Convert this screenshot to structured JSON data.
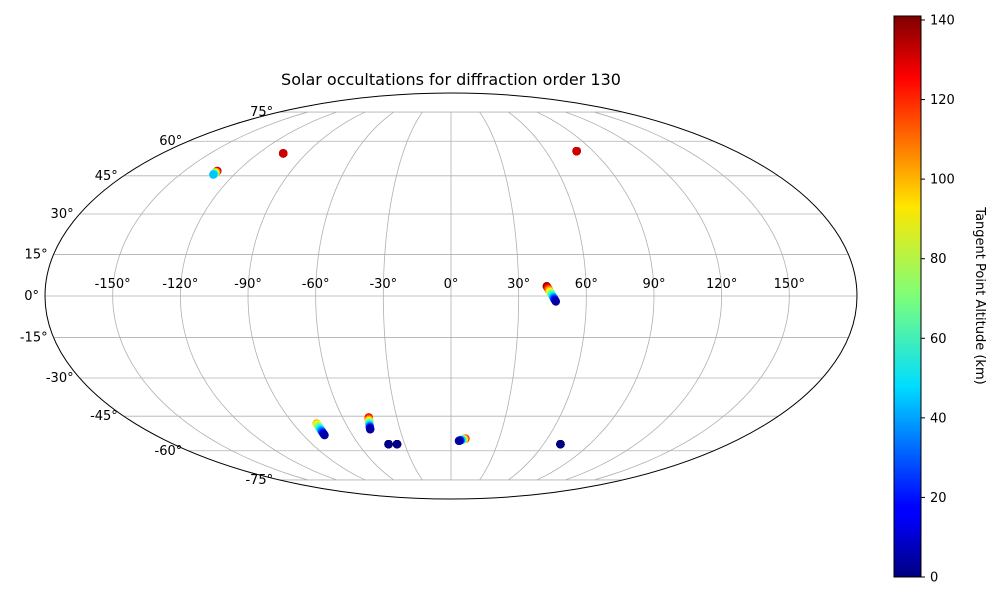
{
  "chart_data": {
    "type": "scatter",
    "projection": "mollweide",
    "title": "Solar occultations for diffraction order 130",
    "lon_ticks": [
      -150,
      -120,
      -90,
      -60,
      -30,
      0,
      30,
      60,
      90,
      120,
      150
    ],
    "lon_tick_labels": [
      "-150°",
      "-120°",
      "-90°",
      "-60°",
      "-30°",
      "0°",
      "30°",
      "60°",
      "90°",
      "120°",
      "150°"
    ],
    "lat_ticks": [
      75,
      60,
      45,
      30,
      15,
      0,
      -15,
      -30,
      -45,
      -60,
      -75
    ],
    "lat_tick_labels": [
      "75°",
      "60°",
      "45°",
      "30°",
      "15°",
      "0°",
      "-15°",
      "-30°",
      "-45°",
      "-60°",
      "-75°"
    ],
    "grid": true,
    "colormap": "jet",
    "colorbar": {
      "label": "Tangent Point Altitude (km)",
      "range": [
        0,
        141
      ],
      "ticks": [
        0,
        20,
        40,
        60,
        80,
        100,
        120,
        140
      ],
      "tick_labels": [
        "0",
        "20",
        "40",
        "60",
        "80",
        "100",
        "120",
        "140"
      ],
      "placement": "right"
    },
    "tracks": [
      {
        "lon_start": -131.5,
        "lat_start": 47.0,
        "lon_end": -131.5,
        "lat_end": 45.5,
        "alt_start": 141,
        "alt_end": 45
      },
      {
        "lon_start": -104.5,
        "lat_start": 54.5,
        "lon_end": -104.5,
        "lat_end": 54.5,
        "alt_start": 141,
        "alt_end": 130
      },
      {
        "lon_start": 79.5,
        "lat_start": 55.5,
        "lon_end": 79.5,
        "lat_end": 55.5,
        "alt_start": 141,
        "alt_end": 130
      },
      {
        "lon_start": 42.5,
        "lat_start": 3.5,
        "lon_end": 46.5,
        "lat_end": -2.0,
        "alt_start": 141,
        "alt_end": 5
      },
      {
        "lon_start": -76.5,
        "lat_start": -48.0,
        "lon_end": -77.0,
        "lat_end": -53.0,
        "alt_start": 100,
        "alt_end": 5
      },
      {
        "lon_start": -45.5,
        "lat_start": -45.5,
        "lon_end": -47.5,
        "lat_end": -50.5,
        "alt_start": 130,
        "alt_end": 5
      },
      {
        "lon_start": -40.5,
        "lat_start": -57.0,
        "lon_end": -40.5,
        "lat_end": -57.0,
        "alt_start": 5,
        "alt_end": 0
      },
      {
        "lon_start": -35.0,
        "lat_start": -57.0,
        "lon_end": -35.0,
        "lat_end": -57.0,
        "alt_start": 5,
        "alt_end": 0
      },
      {
        "lon_start": 9.0,
        "lat_start": -54.5,
        "lon_end": 5.0,
        "lat_end": -55.5,
        "alt_start": 125,
        "alt_end": 5
      },
      {
        "lon_start": 71.0,
        "lat_start": -57.0,
        "lon_end": 71.0,
        "lat_end": -57.0,
        "alt_start": 5,
        "alt_end": 0
      }
    ]
  }
}
